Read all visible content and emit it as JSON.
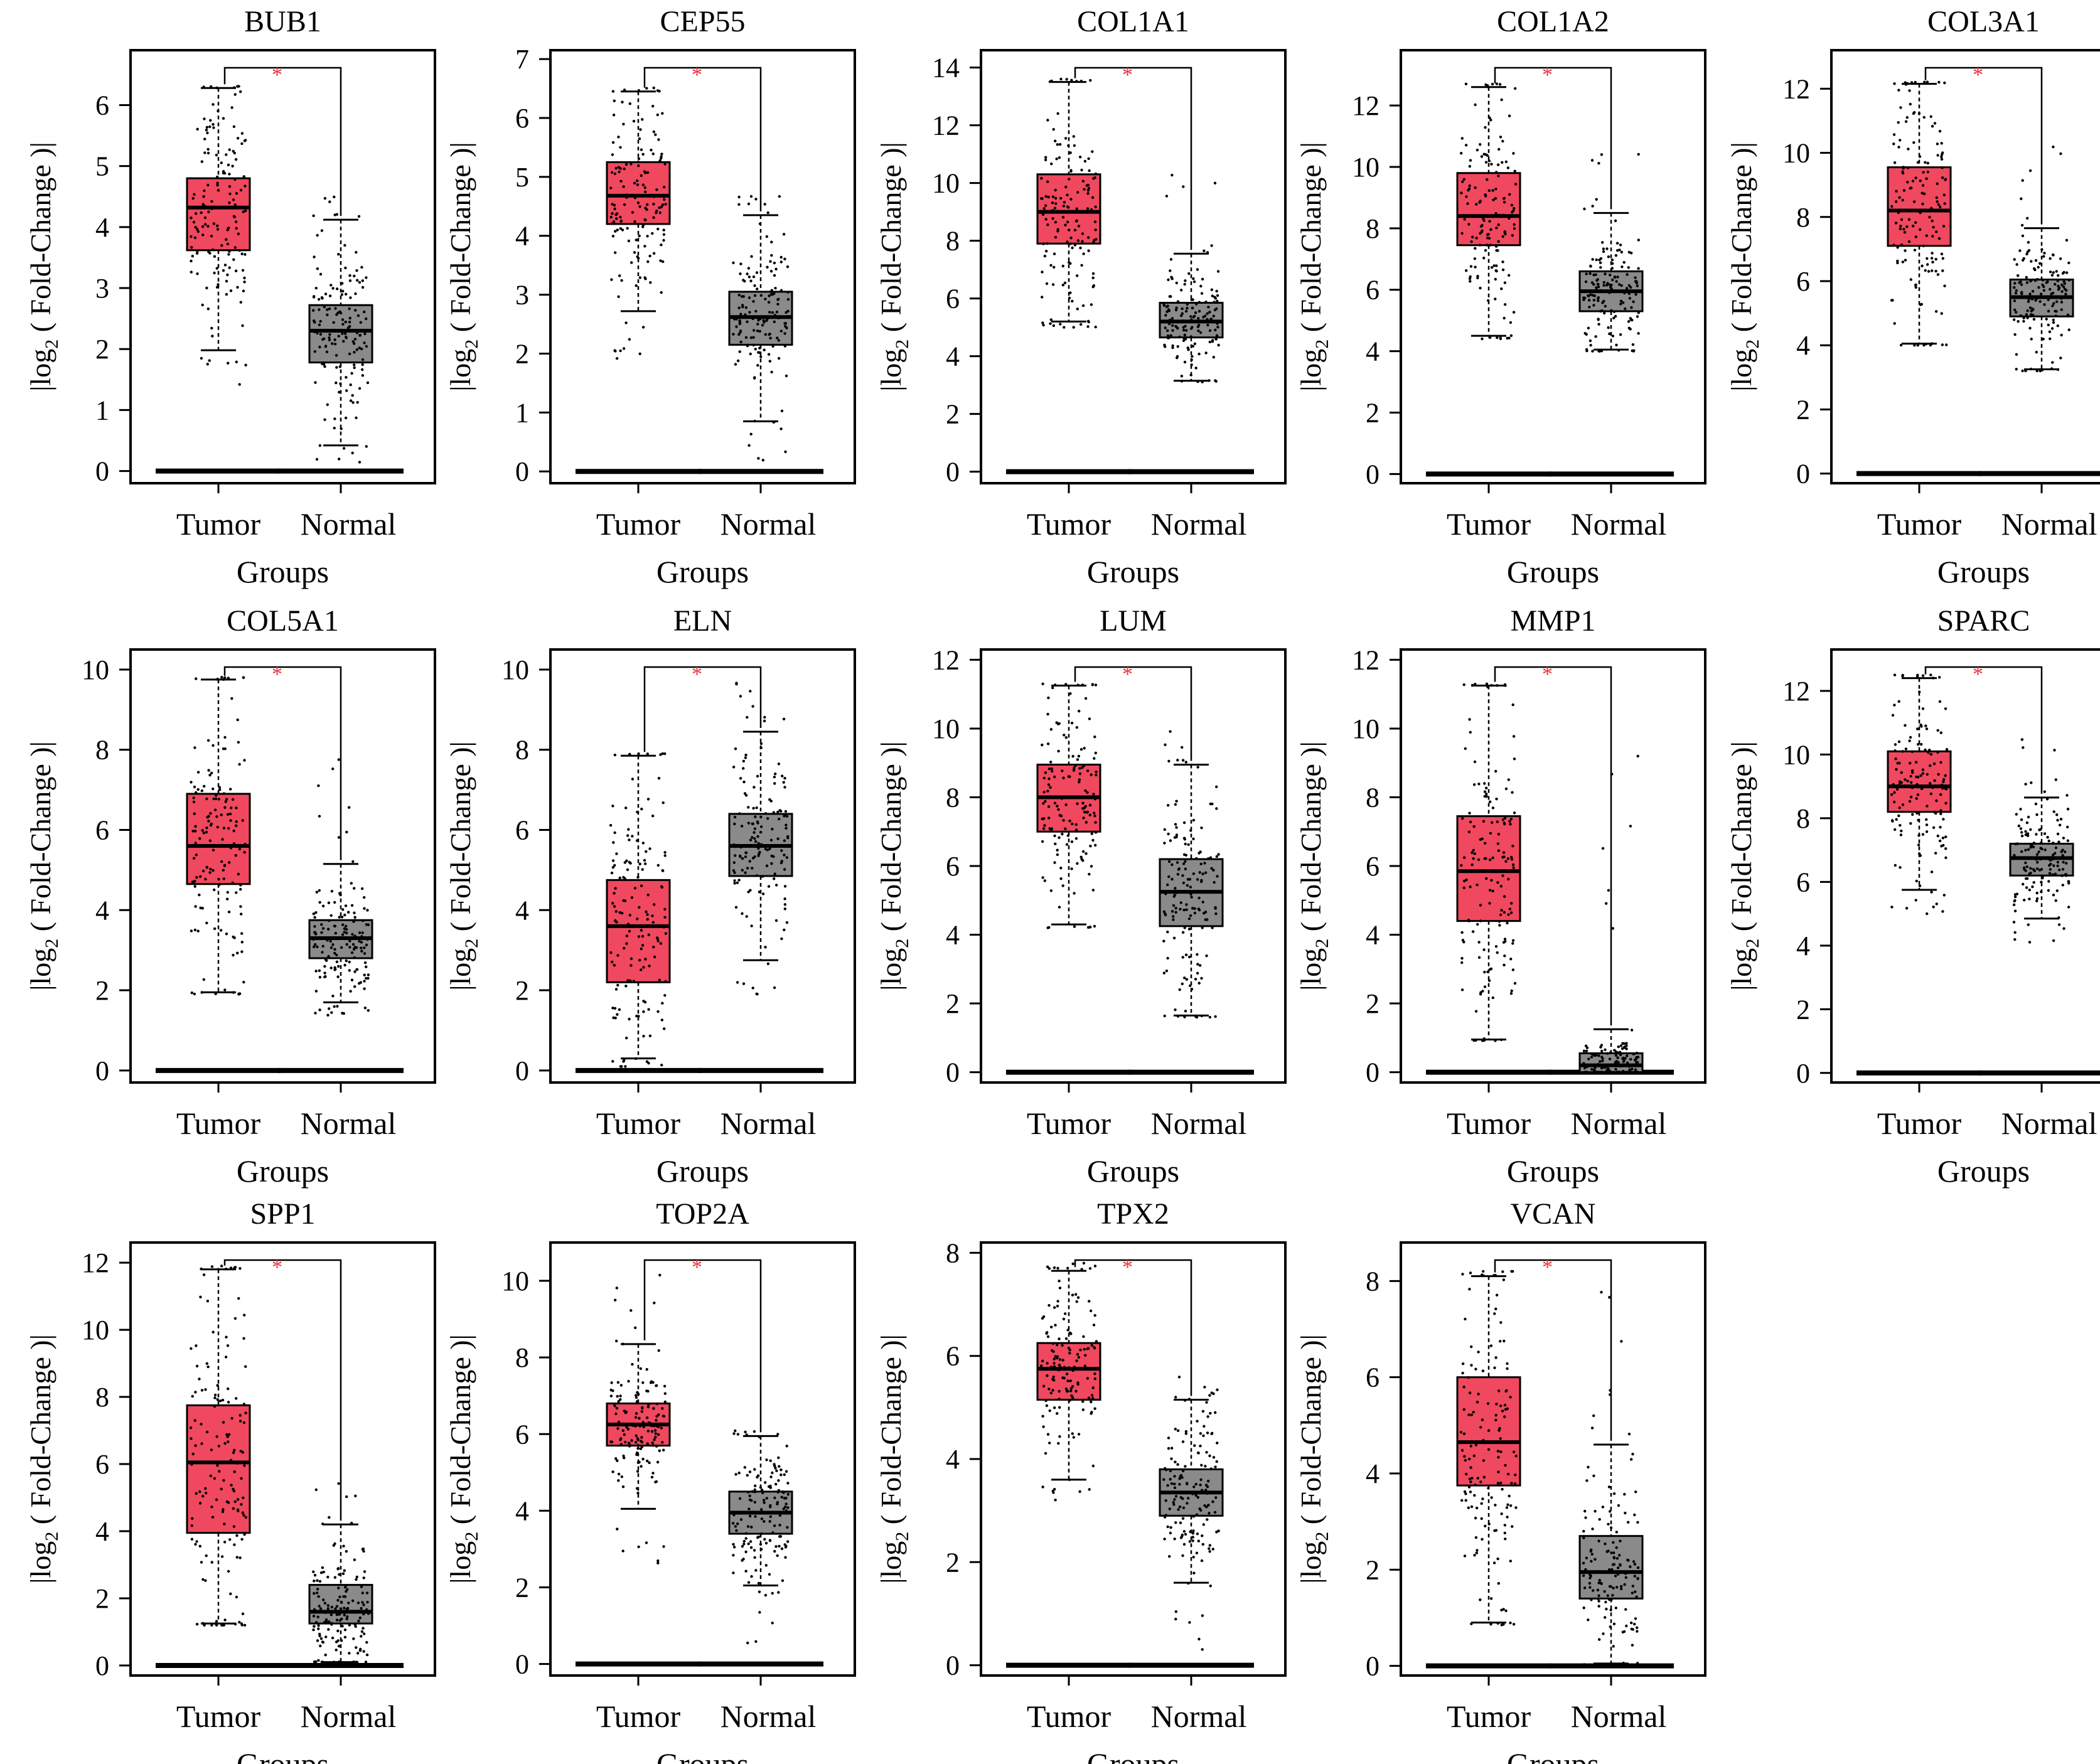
{
  "figure": {
    "colors": {
      "tumor": "#f0485f",
      "normal": "#8a8a8a",
      "star": "#e8303f",
      "axis": "#000000"
    },
    "ylabel_parts": {
      "pre": "|log",
      "sub": "2",
      "post": "( Fold-Change )|"
    },
    "xlabel": "Groups",
    "group_labels": [
      "Tumor",
      "Normal"
    ],
    "significance_mark": "*"
  },
  "chart_data": [
    {
      "type": "box",
      "title": "BUB1",
      "xlabel": "Groups",
      "categories": [
        "Tumor",
        "Normal"
      ],
      "ylim": [
        -0.2,
        6.9
      ],
      "yticks": [
        0,
        1,
        2,
        3,
        4,
        5,
        6
      ],
      "tumor": {
        "q1": 3.62,
        "median": 4.32,
        "q3": 4.8,
        "whisker_low": 1.98,
        "whisker_high": 6.28,
        "pmin": 1.3,
        "pmax": 6.3
      },
      "normal": {
        "q1": 1.78,
        "median": 2.3,
        "q3": 2.72,
        "whisker_low": 0.42,
        "whisker_high": 4.12,
        "pmin": 0.1,
        "pmax": 4.5
      }
    },
    {
      "type": "box",
      "title": "CEP55",
      "xlabel": "Groups",
      "categories": [
        "Tumor",
        "Normal"
      ],
      "ylim": [
        -0.2,
        7.15
      ],
      "yticks": [
        0,
        1,
        2,
        3,
        4,
        5,
        6,
        7
      ],
      "tumor": {
        "q1": 4.2,
        "median": 4.68,
        "q3": 5.25,
        "whisker_low": 2.72,
        "whisker_high": 6.45,
        "pmin": 1.9,
        "pmax": 6.5
      },
      "normal": {
        "q1": 2.15,
        "median": 2.62,
        "q3": 3.05,
        "whisker_low": 0.85,
        "whisker_high": 4.35,
        "pmin": 0.1,
        "pmax": 4.8
      }
    },
    {
      "type": "box",
      "title": "COL1A1",
      "xlabel": "Groups",
      "categories": [
        "Tumor",
        "Normal"
      ],
      "ylim": [
        -0.4,
        14.6
      ],
      "yticks": [
        0,
        2,
        4,
        6,
        8,
        10,
        12,
        14
      ],
      "tumor": {
        "q1": 7.9,
        "median": 9.0,
        "q3": 10.3,
        "whisker_low": 5.2,
        "whisker_high": 13.5,
        "pmin": 5.0,
        "pmax": 13.6
      },
      "normal": {
        "q1": 4.65,
        "median": 5.2,
        "q3": 5.85,
        "whisker_low": 3.15,
        "whisker_high": 7.55,
        "pmin": 3.1,
        "pmax": 10.6
      }
    },
    {
      "type": "box",
      "title": "COL1A2",
      "xlabel": "Groups",
      "categories": [
        "Tumor",
        "Normal"
      ],
      "ylim": [
        -0.3,
        13.8
      ],
      "yticks": [
        0,
        2,
        4,
        6,
        8,
        10,
        12
      ],
      "tumor": {
        "q1": 7.45,
        "median": 8.4,
        "q3": 9.8,
        "whisker_low": 4.5,
        "whisker_high": 12.6,
        "pmin": 4.4,
        "pmax": 12.7
      },
      "normal": {
        "q1": 5.3,
        "median": 5.95,
        "q3": 6.6,
        "whisker_low": 4.05,
        "whisker_high": 8.5,
        "pmin": 4.0,
        "pmax": 10.7
      }
    },
    {
      "type": "box",
      "title": "COL3A1",
      "xlabel": "Groups",
      "categories": [
        "Tumor",
        "Normal"
      ],
      "ylim": [
        -0.3,
        13.2
      ],
      "yticks": [
        0,
        2,
        4,
        6,
        8,
        10,
        12
      ],
      "tumor": {
        "q1": 7.1,
        "median": 8.2,
        "q3": 9.55,
        "whisker_low": 4.05,
        "whisker_high": 12.15,
        "pmin": 4.0,
        "pmax": 12.2
      },
      "normal": {
        "q1": 4.9,
        "median": 5.5,
        "q3": 6.05,
        "whisker_low": 3.25,
        "whisker_high": 7.65,
        "pmin": 3.2,
        "pmax": 10.2
      }
    },
    {
      "type": "box",
      "title": "COL5A1",
      "xlabel": "Groups",
      "categories": [
        "Tumor",
        "Normal"
      ],
      "ylim": [
        -0.3,
        10.5
      ],
      "yticks": [
        0,
        2,
        4,
        6,
        8,
        10
      ],
      "tumor": {
        "q1": 4.65,
        "median": 5.6,
        "q3": 6.9,
        "whisker_low": 1.95,
        "whisker_high": 9.75,
        "pmin": 1.9,
        "pmax": 9.8
      },
      "normal": {
        "q1": 2.8,
        "median": 3.3,
        "q3": 3.75,
        "whisker_low": 1.7,
        "whisker_high": 5.15,
        "pmin": 1.3,
        "pmax": 7.8
      }
    },
    {
      "type": "box",
      "title": "ELN",
      "xlabel": "Groups",
      "categories": [
        "Tumor",
        "Normal"
      ],
      "ylim": [
        -0.3,
        10.5
      ],
      "yticks": [
        0,
        2,
        4,
        6,
        8,
        10
      ],
      "tumor": {
        "q1": 2.2,
        "median": 3.6,
        "q3": 4.75,
        "whisker_low": 0.3,
        "whisker_high": 7.85,
        "pmin": 0.1,
        "pmax": 7.9
      },
      "normal": {
        "q1": 4.85,
        "median": 5.6,
        "q3": 6.4,
        "whisker_low": 2.75,
        "whisker_high": 8.45,
        "pmin": 1.9,
        "pmax": 9.9
      }
    },
    {
      "type": "box",
      "title": "LUM",
      "xlabel": "Groups",
      "categories": [
        "Tumor",
        "Normal"
      ],
      "ylim": [
        -0.3,
        12.3
      ],
      "yticks": [
        0,
        2,
        4,
        6,
        8,
        10,
        12
      ],
      "tumor": {
        "q1": 7.0,
        "median": 8.0,
        "q3": 8.95,
        "whisker_low": 4.3,
        "whisker_high": 11.25,
        "pmin": 4.2,
        "pmax": 11.3
      },
      "normal": {
        "q1": 4.25,
        "median": 5.25,
        "q3": 6.2,
        "whisker_low": 1.65,
        "whisker_high": 8.95,
        "pmin": 1.6,
        "pmax": 10.3
      }
    },
    {
      "type": "box",
      "title": "MMP1",
      "xlabel": "Groups",
      "categories": [
        "Tumor",
        "Normal"
      ],
      "ylim": [
        -0.3,
        12.3
      ],
      "yticks": [
        0,
        2,
        4,
        6,
        8,
        10,
        12
      ],
      "tumor": {
        "q1": 4.4,
        "median": 5.85,
        "q3": 7.45,
        "whisker_low": 0.95,
        "whisker_high": 11.25,
        "pmin": 0.9,
        "pmax": 11.3
      },
      "normal": {
        "q1": 0.0,
        "median": 0.2,
        "q3": 0.55,
        "whisker_low": 0.0,
        "whisker_high": 1.25,
        "pmin": 0.0,
        "pmax": 9.2
      }
    },
    {
      "type": "box",
      "title": "SPARC",
      "xlabel": "Groups",
      "categories": [
        "Tumor",
        "Normal"
      ],
      "ylim": [
        -0.3,
        13.3
      ],
      "yticks": [
        0,
        2,
        4,
        6,
        8,
        10,
        12
      ],
      "tumor": {
        "q1": 8.2,
        "median": 9.0,
        "q3": 10.1,
        "whisker_low": 5.75,
        "whisker_high": 12.4,
        "pmin": 5.0,
        "pmax": 12.5
      },
      "normal": {
        "q1": 6.2,
        "median": 6.75,
        "q3": 7.2,
        "whisker_low": 4.85,
        "whisker_high": 8.65,
        "pmin": 4.1,
        "pmax": 10.5
      }
    },
    {
      "type": "box",
      "title": "SPP1",
      "xlabel": "Groups",
      "categories": [
        "Tumor",
        "Normal"
      ],
      "ylim": [
        -0.3,
        12.6
      ],
      "yticks": [
        0,
        2,
        4,
        6,
        8,
        10,
        12
      ],
      "tumor": {
        "q1": 3.95,
        "median": 6.05,
        "q3": 7.75,
        "whisker_low": 1.25,
        "whisker_high": 11.8,
        "pmin": 1.2,
        "pmax": 11.9
      },
      "normal": {
        "q1": 1.25,
        "median": 1.6,
        "q3": 2.4,
        "whisker_low": 0.1,
        "whisker_high": 4.2,
        "pmin": 0.1,
        "pmax": 5.9
      }
    },
    {
      "type": "box",
      "title": "TOP2A",
      "xlabel": "Groups",
      "categories": [
        "Tumor",
        "Normal"
      ],
      "ylim": [
        -0.3,
        11.0
      ],
      "yticks": [
        0,
        2,
        4,
        6,
        8,
        10
      ],
      "tumor": {
        "q1": 5.7,
        "median": 6.25,
        "q3": 6.8,
        "whisker_low": 4.05,
        "whisker_high": 8.35,
        "pmin": 2.6,
        "pmax": 10.3
      },
      "normal": {
        "q1": 3.4,
        "median": 3.95,
        "q3": 4.5,
        "whisker_low": 2.05,
        "whisker_high": 5.95,
        "pmin": 0.4,
        "pmax": 6.1
      }
    },
    {
      "type": "box",
      "title": "TPX2",
      "xlabel": "Groups",
      "categories": [
        "Tumor",
        "Normal"
      ],
      "ylim": [
        -0.2,
        8.2
      ],
      "yticks": [
        0,
        2,
        4,
        6,
        8
      ],
      "tumor": {
        "q1": 5.15,
        "median": 5.75,
        "q3": 6.25,
        "whisker_low": 3.6,
        "whisker_high": 7.65,
        "pmin": 2.5,
        "pmax": 7.8
      },
      "normal": {
        "q1": 2.9,
        "median": 3.35,
        "q3": 3.8,
        "whisker_low": 1.6,
        "whisker_high": 5.15,
        "pmin": 0.1,
        "pmax": 5.6
      }
    },
    {
      "type": "box",
      "title": "VCAN",
      "xlabel": "Groups",
      "categories": [
        "Tumor",
        "Normal"
      ],
      "ylim": [
        -0.2,
        8.8
      ],
      "yticks": [
        0,
        2,
        4,
        6,
        8
      ],
      "tumor": {
        "q1": 3.75,
        "median": 4.65,
        "q3": 6.0,
        "whisker_low": 0.9,
        "whisker_high": 8.1,
        "pmin": 0.85,
        "pmax": 8.2
      },
      "normal": {
        "q1": 1.4,
        "median": 1.95,
        "q3": 2.7,
        "whisker_low": 0.05,
        "whisker_high": 4.6,
        "pmin": 0.0,
        "pmax": 7.8
      }
    }
  ]
}
